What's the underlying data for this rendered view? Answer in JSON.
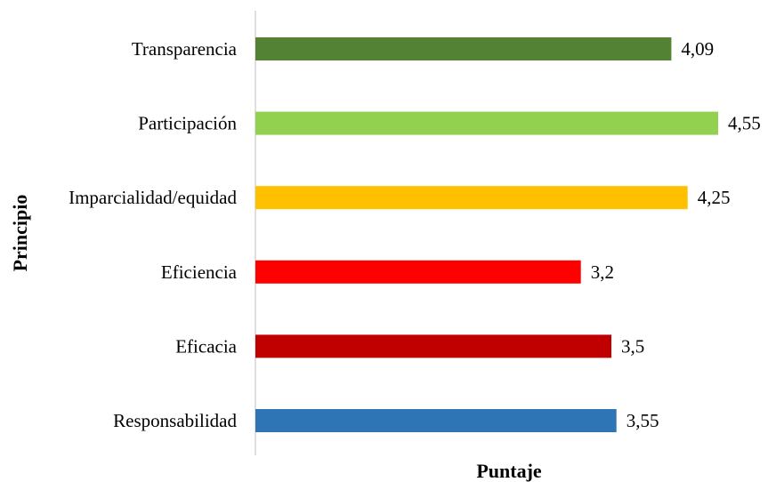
{
  "chart_data": {
    "type": "bar",
    "orientation": "horizontal",
    "categories": [
      "Transparencia",
      "Participación",
      "Imparcialidad/equidad",
      "Eficiencia",
      "Eficacia",
      "Responsabilidad"
    ],
    "values": [
      4.09,
      4.55,
      4.25,
      3.2,
      3.5,
      3.55
    ],
    "value_labels": [
      "4,09",
      "4,55",
      "4,25",
      "3,2",
      "3,5",
      "3,55"
    ],
    "colors": [
      "#548235",
      "#92D050",
      "#FFC000",
      "#FF0000",
      "#C00000",
      "#2E75B6"
    ],
    "xlabel": "Puntaje",
    "ylabel": "Principio",
    "xlim": [
      0,
      4.55
    ],
    "grid": false,
    "legend": "none"
  }
}
